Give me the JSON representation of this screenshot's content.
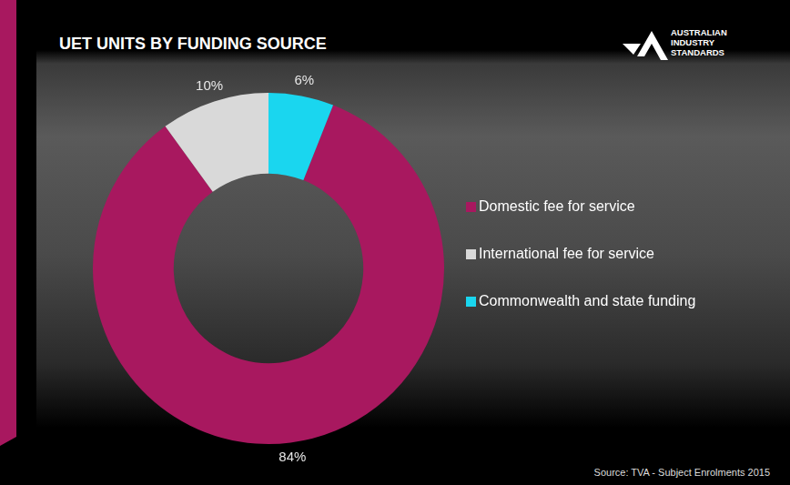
{
  "chart_data": {
    "type": "doughnut",
    "title": "UET UNITS BY FUNDING SOURCE",
    "categories": [
      "Domestic fee for service",
      "International fee for service",
      "Commonwealth  and state funding"
    ],
    "values": [
      84,
      10,
      6
    ],
    "value_labels": [
      "84%",
      "10%",
      "6%"
    ],
    "colors": [
      "#a8185f",
      "#d9d9d9",
      "#1ad6ef"
    ],
    "data_labels": true,
    "legend": "right",
    "annotations": [
      "Source: TVA - Subject Enrolments 2015",
      "AUSTRALIAN INDUSTRY STANDARDS"
    ]
  }
}
